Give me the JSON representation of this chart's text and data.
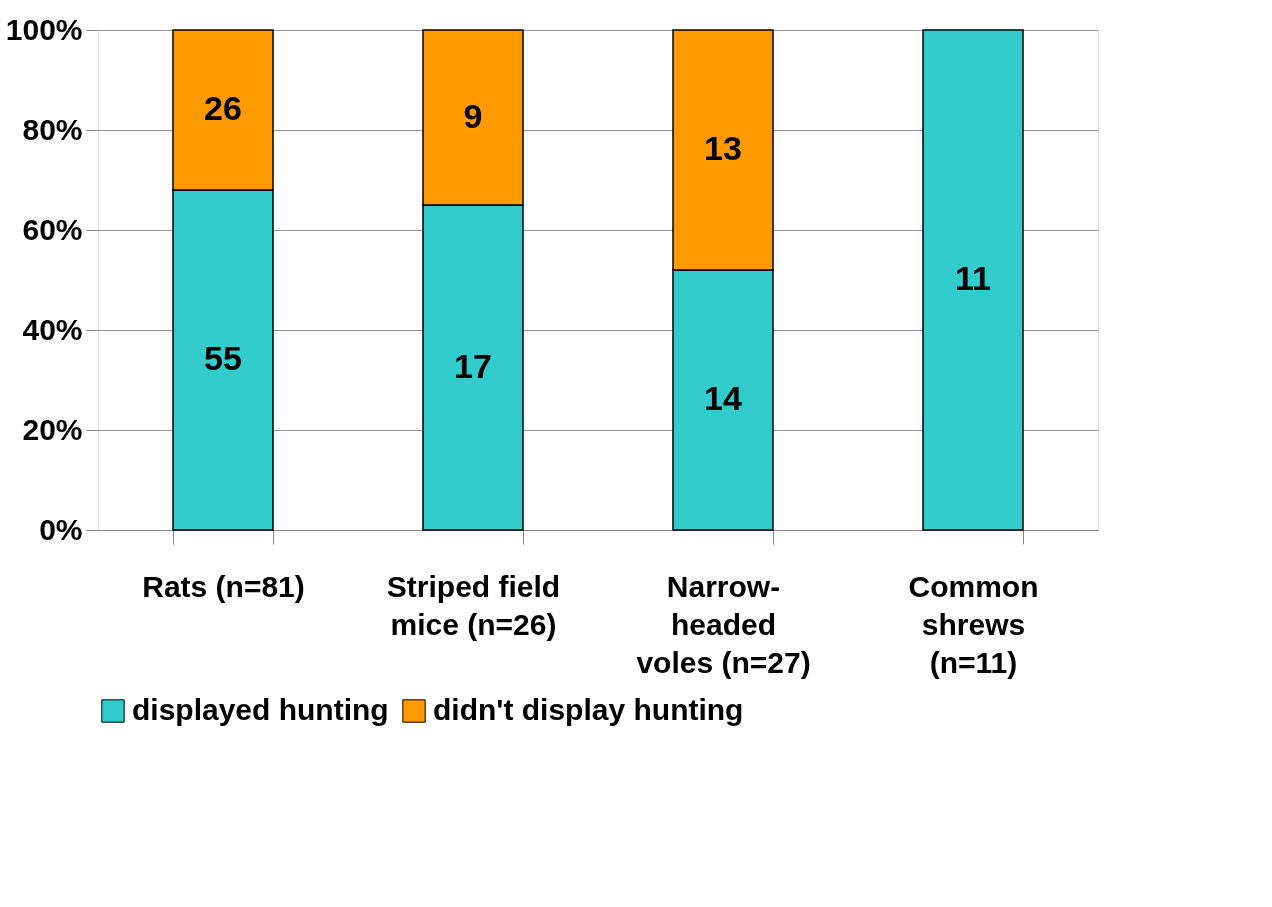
{
  "chart_data": {
    "type": "bar",
    "stacked": true,
    "categories": [
      "Rats (n=81)",
      "Striped field\nmice (n=26)",
      "Narrow-\nheaded\nvoles  (n=27)",
      "Common\nshrews\n(n=11)"
    ],
    "series": [
      {
        "name": "displayed hunting",
        "color": "#33cccc",
        "values": [
          68,
          65,
          52,
          100
        ]
      },
      {
        "name": "didn't display hunting",
        "color": "#ff9900",
        "values": [
          32,
          35,
          48,
          null
        ]
      }
    ],
    "annotations": [
      "55",
      "26",
      "17",
      "9",
      "14",
      "13",
      "11"
    ],
    "ylim": [
      0,
      100
    ],
    "yticks": [
      {
        "value": 0,
        "label": "0%"
      },
      {
        "value": 20,
        "label": "20%"
      },
      {
        "value": 40,
        "label": "40%"
      },
      {
        "value": 60,
        "label": "60%"
      },
      {
        "value": 80,
        "label": "80%"
      },
      {
        "value": 100,
        "label": "100%"
      }
    ],
    "grid": "y",
    "legend": "bottom"
  }
}
